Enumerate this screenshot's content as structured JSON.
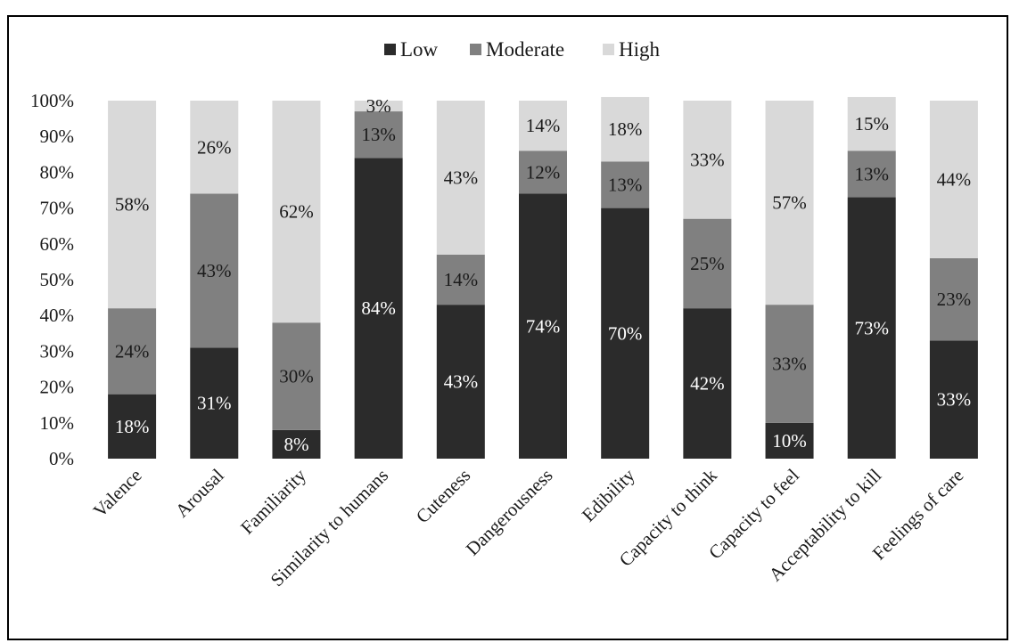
{
  "chart_data": {
    "type": "bar",
    "stacked": true,
    "normalized": true,
    "categories": [
      "Valence",
      "Arousal",
      "Familiarity",
      "Similarity to humans",
      "Cuteness",
      "Dangerousness",
      "Edibility",
      "Capacity to think",
      "Capacity to feel",
      "Acceptability to kill",
      "Feelings of care"
    ],
    "series": [
      {
        "name": "Low",
        "color": "#2b2b2b",
        "label_color": "#ffffff",
        "values": [
          18,
          31,
          8,
          84,
          43,
          74,
          70,
          42,
          10,
          73,
          33
        ],
        "labels": [
          "18%",
          "31%",
          "8%",
          "84%",
          "43%",
          "74%",
          "70%",
          "42%",
          "10%",
          "73%",
          "33%"
        ]
      },
      {
        "name": "Moderate",
        "color": "#808080",
        "label_color": "#1a1a1a",
        "values": [
          24,
          43,
          30,
          13,
          14,
          12,
          13,
          25,
          33,
          13,
          23
        ],
        "labels": [
          "24%",
          "43%",
          "30%",
          "13%",
          "14%",
          "12%",
          "13%",
          "25%",
          "33%",
          "13%",
          "23%"
        ]
      },
      {
        "name": "High",
        "color": "#d9d9d9",
        "label_color": "#1a1a1a",
        "values": [
          58,
          26,
          62,
          3,
          43,
          14,
          18,
          33,
          57,
          15,
          44
        ],
        "labels": [
          "58%",
          "26%",
          "62%",
          "3%",
          "43%",
          "14%",
          "18%",
          "33%",
          "57%",
          "15%",
          "44%"
        ]
      }
    ],
    "ylim": [
      0,
      100
    ],
    "yticks": [
      "0%",
      "10%",
      "20%",
      "30%",
      "40%",
      "50%",
      "60%",
      "70%",
      "80%",
      "90%",
      "100%"
    ],
    "grid": false,
    "legend": "top-center",
    "title": "",
    "xlabel": "",
    "ylabel": ""
  }
}
